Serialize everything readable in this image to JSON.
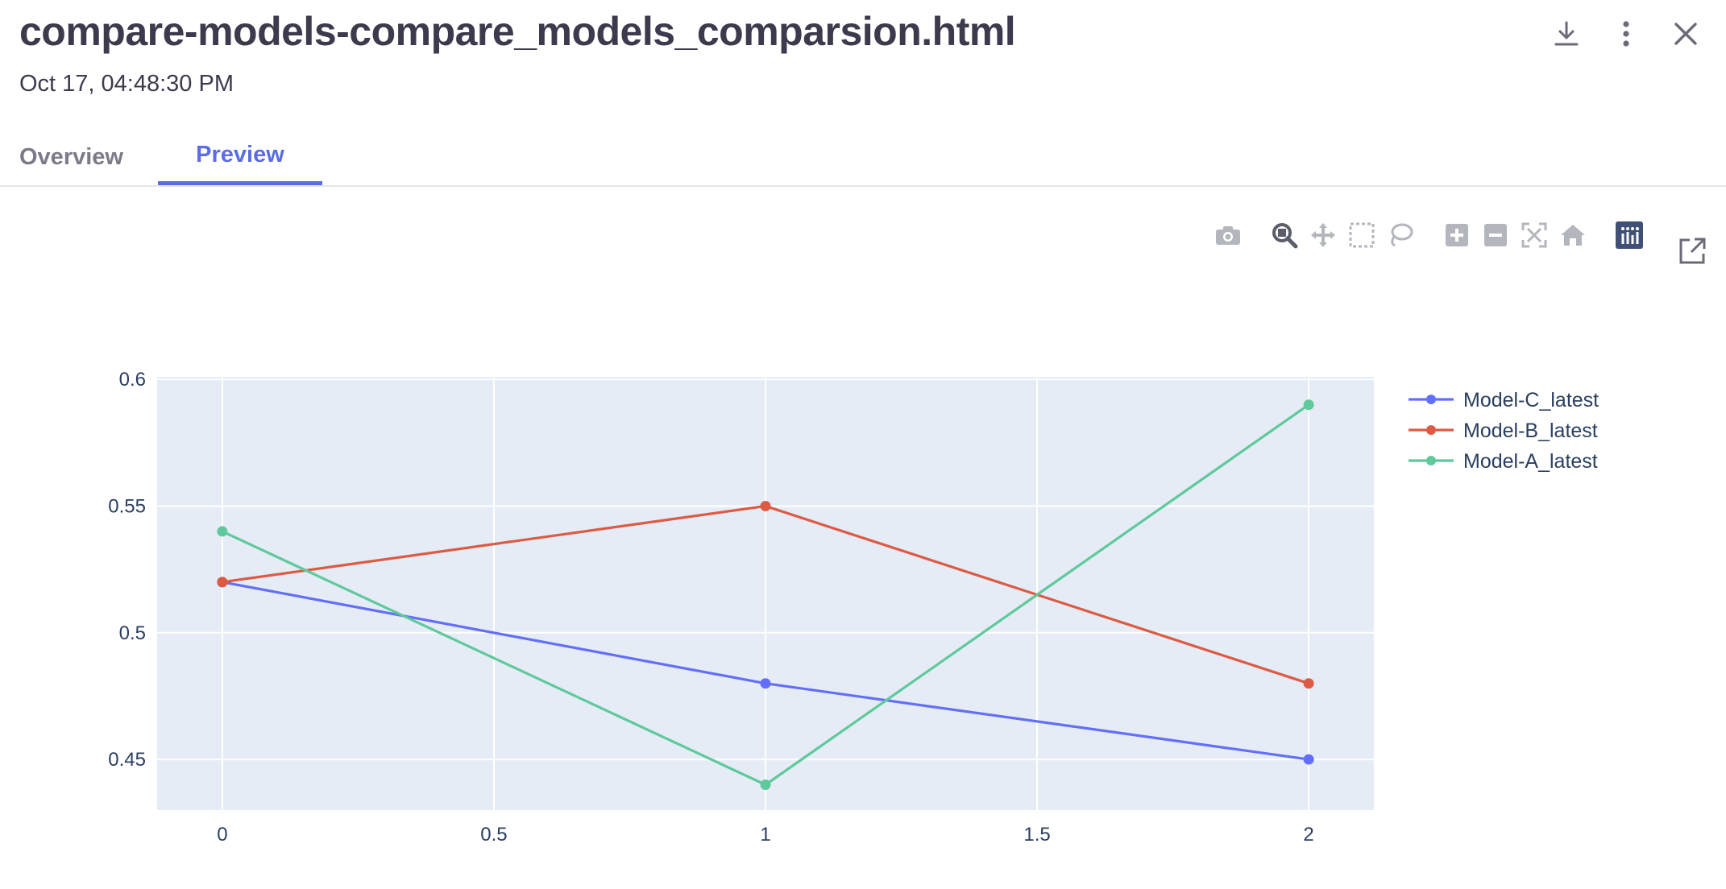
{
  "header": {
    "title": "compare-models-compare_models_comparsion.html",
    "timestamp": "Oct 17, 04:48:30 PM",
    "actions": [
      "download-icon",
      "more-vertical-icon",
      "close-icon"
    ]
  },
  "tabs": [
    {
      "label": "Overview",
      "active": false
    },
    {
      "label": "Preview",
      "active": true
    }
  ],
  "modebar": [
    "camera-icon",
    "zoom-icon",
    "pan-icon",
    "box-select-icon",
    "lasso-select-icon",
    "zoom-in-icon",
    "zoom-out-icon",
    "autoscale-icon",
    "reset-axes-icon",
    "plotly-logo-icon"
  ],
  "colors": {
    "accent": "#5b6ce4",
    "plot_bg": "#e5ecf6",
    "series": [
      "#636efa",
      "#EF553B",
      "#00cc96"
    ]
  },
  "chart_data": {
    "type": "line",
    "x": [
      0,
      1,
      2
    ],
    "xlim": [
      -0.12,
      2.12
    ],
    "ylim": [
      0.43,
      0.601
    ],
    "xticks": [
      "0",
      "0.5",
      "1",
      "1.5",
      "2"
    ],
    "yticks": [
      "0.45",
      "0.5",
      "0.55",
      "0.6"
    ],
    "grid": true,
    "legend_position": "top-right",
    "series": [
      {
        "name": "Model-C_latest",
        "values": [
          0.52,
          0.48,
          0.45
        ],
        "color": "#636efa"
      },
      {
        "name": "Model-B_latest",
        "values": [
          0.52,
          0.55,
          0.48
        ],
        "color": "#dd5a43"
      },
      {
        "name": "Model-A_latest",
        "values": [
          0.54,
          0.44,
          0.59
        ],
        "color": "#5fc99b"
      }
    ]
  }
}
